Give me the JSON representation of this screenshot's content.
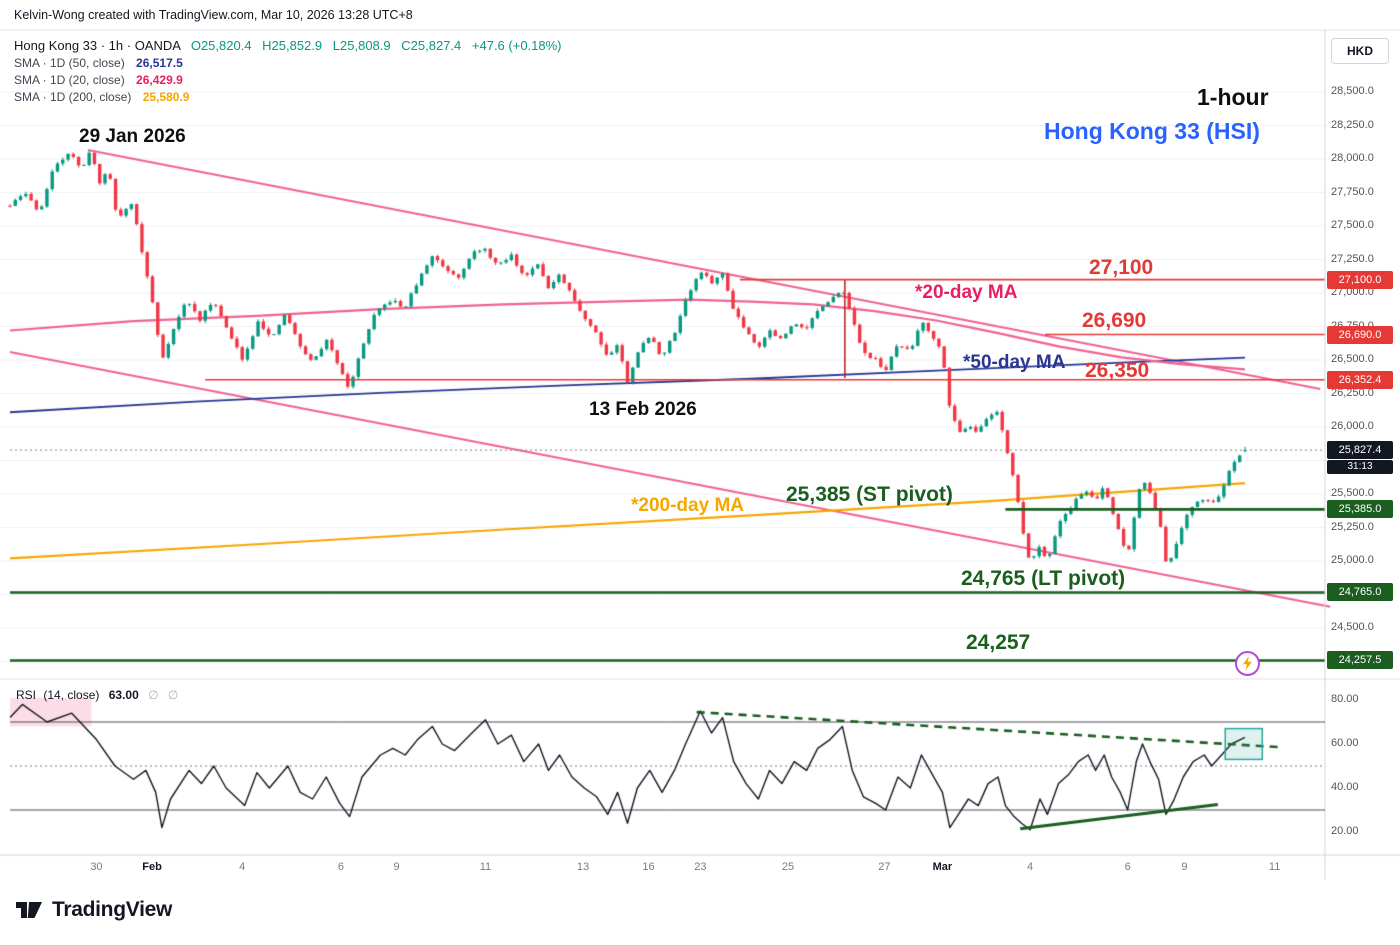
{
  "header": {
    "credit": "Kelvin-Wong created with TradingView.com, Mar 10, 2026 13:28 UTC+8"
  },
  "currency_button": "HKD",
  "legend": {
    "symbol": "Hong Kong 33 · 1h · OANDA",
    "o": "O25,820.4",
    "h": "H25,852.9",
    "l": "L25,808.9",
    "c": "C25,827.4",
    "change": "+47.6 (+0.18%)",
    "sma": [
      {
        "label": "SMA · 1D (50, close)",
        "value": "26,517.5",
        "color": "#283593"
      },
      {
        "label": "SMA · 1D (20, close)",
        "value": "26,429.9",
        "color": "#e91e63"
      },
      {
        "label": "SMA · 1D (200, close)",
        "value": "25,580.9",
        "color": "#f7a600"
      }
    ]
  },
  "annotations": {
    "date_jan": "29 Jan 2026",
    "date_feb": "13 Feb 2026",
    "timeframe": "1-hour",
    "symbol": "Hong Kong 33 (HSI)",
    "r1": "27,100",
    "ma20": "*20-day MA",
    "r2": "26,690",
    "ma50": "*50-day MA",
    "r3": "26,350",
    "ma200": "*200-day MA",
    "st_pivot": "25,385 (ST pivot)",
    "lt_pivot": "24,765 (LT pivot)",
    "s3": "24,257"
  },
  "rsi_legend": {
    "name": "RSI",
    "params": "(14, close)",
    "value": "63.00",
    "empty1": "∅",
    "empty2": "∅"
  },
  "logo": {
    "text": "TradingView"
  },
  "price_axis": {
    "labels": [
      {
        "text": "28,500.0",
        "price": 28500
      },
      {
        "text": "28,250.0",
        "price": 28250
      },
      {
        "text": "28,000.0",
        "price": 28000
      },
      {
        "text": "27,750.0",
        "price": 27750
      },
      {
        "text": "27,500.0",
        "price": 27500
      },
      {
        "text": "27,250.0",
        "price": 27250
      },
      {
        "text": "27,000.0",
        "price": 27000
      },
      {
        "text": "26,750.0",
        "price": 26750
      },
      {
        "text": "26,500.0",
        "price": 26500
      },
      {
        "text": "26,250.0",
        "price": 26250
      },
      {
        "text": "26,000.0",
        "price": 26000
      },
      {
        "text": "25,500.0",
        "price": 25500
      },
      {
        "text": "25,250.0",
        "price": 25250
      },
      {
        "text": "25,000.0",
        "price": 25000
      },
      {
        "text": "24,500.0",
        "price": 24500
      }
    ],
    "badges": [
      {
        "text": "27,100.0",
        "price": 27100,
        "bg": "#e53935"
      },
      {
        "text": "26,690.0",
        "price": 26690,
        "bg": "#e53935"
      },
      {
        "text": "26,352.4",
        "price": 26352.4,
        "bg": "#e53935"
      },
      {
        "text": "25,827.4",
        "price": 25827.4,
        "bg": "#131722",
        "sub": "31:13"
      },
      {
        "text": "25,385.0",
        "price": 25385,
        "bg": "#1b5e20"
      },
      {
        "text": "24,765.0",
        "price": 24765,
        "bg": "#1b5e20"
      },
      {
        "text": "24,257.5",
        "price": 24257.5,
        "bg": "#1b5e20"
      }
    ]
  },
  "rsi_axis": {
    "labels": [
      {
        "text": "80.00",
        "v": 80
      },
      {
        "text": "60.00",
        "v": 60
      },
      {
        "text": "40.00",
        "v": 40
      },
      {
        "text": "20.00",
        "v": 20
      }
    ]
  },
  "time_axis": {
    "ticks": [
      {
        "label": "30",
        "t": 0.07,
        "major": false
      },
      {
        "label": "Feb",
        "t": 0.115,
        "major": true
      },
      {
        "label": "4",
        "t": 0.188,
        "major": false
      },
      {
        "label": "6",
        "t": 0.268,
        "major": false
      },
      {
        "label": "9",
        "t": 0.313,
        "major": false
      },
      {
        "label": "11",
        "t": 0.385,
        "major": false
      },
      {
        "label": "13",
        "t": 0.464,
        "major": false
      },
      {
        "label": "16",
        "t": 0.517,
        "major": false
      },
      {
        "label": "23",
        "t": 0.559,
        "major": false
      },
      {
        "label": "25",
        "t": 0.63,
        "major": false
      },
      {
        "label": "27",
        "t": 0.708,
        "major": false
      },
      {
        "label": "Mar",
        "t": 0.755,
        "major": true
      },
      {
        "label": "4",
        "t": 0.826,
        "major": false
      },
      {
        "label": "6",
        "t": 0.905,
        "major": false
      },
      {
        "label": "9",
        "t": 0.951,
        "major": false
      },
      {
        "label": "11",
        "t": 1.024,
        "major": false
      }
    ]
  },
  "chart_data": {
    "type": "candlestick",
    "symbol": "Hong Kong 33 (HSI)",
    "exchange": "OANDA",
    "interval": "1h",
    "title": "Hong Kong 33 (HSI) 1-hour with 20/50/200-day SMAs and RSI(14)",
    "y_axis_range": [
      24150,
      28650
    ],
    "ohlc_last": {
      "open": 25820.4,
      "high": 25852.9,
      "low": 25808.9,
      "close": 25827.4,
      "change": 47.6,
      "change_pct": 0.18
    },
    "last_price": 25827.4,
    "sma_last": {
      "sma50": 26517.5,
      "sma20": 26429.9,
      "sma200": 25580.9
    },
    "close_path": [
      [
        0,
        27650
      ],
      [
        0.012,
        27750
      ],
      [
        0.024,
        27600
      ],
      [
        0.036,
        27950
      ],
      [
        0.049,
        28060
      ],
      [
        0.058,
        27900
      ],
      [
        0.065,
        28080
      ],
      [
        0.073,
        27800
      ],
      [
        0.079,
        27950
      ],
      [
        0.087,
        27550
      ],
      [
        0.099,
        27680
      ],
      [
        0.107,
        27300
      ],
      [
        0.115,
        26950
      ],
      [
        0.123,
        26500
      ],
      [
        0.131,
        26700
      ],
      [
        0.143,
        26950
      ],
      [
        0.154,
        26800
      ],
      [
        0.165,
        26950
      ],
      [
        0.177,
        26700
      ],
      [
        0.189,
        26500
      ],
      [
        0.201,
        26800
      ],
      [
        0.212,
        26650
      ],
      [
        0.223,
        26850
      ],
      [
        0.235,
        26600
      ],
      [
        0.245,
        26480
      ],
      [
        0.256,
        26650
      ],
      [
        0.267,
        26450
      ],
      [
        0.275,
        26280
      ],
      [
        0.285,
        26600
      ],
      [
        0.296,
        26850
      ],
      [
        0.309,
        26950
      ],
      [
        0.319,
        26880
      ],
      [
        0.33,
        27080
      ],
      [
        0.342,
        27280
      ],
      [
        0.353,
        27180
      ],
      [
        0.363,
        27120
      ],
      [
        0.374,
        27300
      ],
      [
        0.385,
        27320
      ],
      [
        0.395,
        27200
      ],
      [
        0.406,
        27280
      ],
      [
        0.416,
        27120
      ],
      [
        0.428,
        27230
      ],
      [
        0.436,
        27030
      ],
      [
        0.445,
        27130
      ],
      [
        0.455,
        26980
      ],
      [
        0.465,
        26820
      ],
      [
        0.475,
        26700
      ],
      [
        0.484,
        26520
      ],
      [
        0.492,
        26620
      ],
      [
        0.5,
        26330
      ],
      [
        0.508,
        26560
      ],
      [
        0.518,
        26680
      ],
      [
        0.528,
        26520
      ],
      [
        0.538,
        26700
      ],
      [
        0.547,
        26950
      ],
      [
        0.559,
        27160
      ],
      [
        0.568,
        27080
      ],
      [
        0.577,
        27140
      ],
      [
        0.586,
        26880
      ],
      [
        0.596,
        26720
      ],
      [
        0.606,
        26600
      ],
      [
        0.615,
        26720
      ],
      [
        0.625,
        26650
      ],
      [
        0.635,
        26780
      ],
      [
        0.645,
        26740
      ],
      [
        0.654,
        26870
      ],
      [
        0.664,
        26930
      ],
      [
        0.674,
        27050
      ],
      [
        0.682,
        26800
      ],
      [
        0.691,
        26560
      ],
      [
        0.701,
        26500
      ],
      [
        0.709,
        26420
      ],
      [
        0.719,
        26620
      ],
      [
        0.729,
        26560
      ],
      [
        0.738,
        26800
      ],
      [
        0.747,
        26680
      ],
      [
        0.755,
        26550
      ],
      [
        0.761,
        26150
      ],
      [
        0.768,
        25950
      ],
      [
        0.776,
        26020
      ],
      [
        0.784,
        25960
      ],
      [
        0.792,
        26080
      ],
      [
        0.8,
        26120
      ],
      [
        0.806,
        25880
      ],
      [
        0.813,
        25600
      ],
      [
        0.819,
        25280
      ],
      [
        0.826,
        24980
      ],
      [
        0.834,
        25120
      ],
      [
        0.84,
        25000
      ],
      [
        0.849,
        25280
      ],
      [
        0.857,
        25380
      ],
      [
        0.865,
        25480
      ],
      [
        0.873,
        25530
      ],
      [
        0.879,
        25440
      ],
      [
        0.886,
        25560
      ],
      [
        0.892,
        25380
      ],
      [
        0.899,
        25200
      ],
      [
        0.905,
        25020
      ],
      [
        0.912,
        25440
      ],
      [
        0.917,
        25620
      ],
      [
        0.923,
        25500
      ],
      [
        0.93,
        25340
      ],
      [
        0.936,
        24980
      ],
      [
        0.942,
        25050
      ],
      [
        0.95,
        25280
      ],
      [
        0.958,
        25420
      ],
      [
        0.967,
        25470
      ],
      [
        0.973,
        25420
      ],
      [
        0.981,
        25520
      ],
      [
        0.989,
        25700
      ],
      [
        1,
        25827.4
      ]
    ],
    "sma20": [
      [
        0,
        26720
      ],
      [
        0.1,
        26790
      ],
      [
        0.2,
        26830
      ],
      [
        0.3,
        26880
      ],
      [
        0.4,
        26915
      ],
      [
        0.5,
        26940
      ],
      [
        0.55,
        26950
      ],
      [
        0.6,
        26935
      ],
      [
        0.65,
        26915
      ],
      [
        0.7,
        26865
      ],
      [
        0.75,
        26795
      ],
      [
        0.8,
        26700
      ],
      [
        0.85,
        26600
      ],
      [
        0.9,
        26520
      ],
      [
        0.95,
        26468
      ],
      [
        1,
        26429.9
      ]
    ],
    "sma50": [
      [
        0,
        26110
      ],
      [
        0.15,
        26190
      ],
      [
        0.3,
        26255
      ],
      [
        0.45,
        26310
      ],
      [
        0.6,
        26360
      ],
      [
        0.75,
        26420
      ],
      [
        0.9,
        26480
      ],
      [
        1,
        26517.5
      ]
    ],
    "sma200": [
      [
        0,
        25020
      ],
      [
        0.2,
        25125
      ],
      [
        0.4,
        25235
      ],
      [
        0.6,
        25340
      ],
      [
        0.8,
        25450
      ],
      [
        1,
        25580.9
      ]
    ],
    "levels": [
      {
        "price": 27100,
        "t_start": 0.591,
        "color": "#e53935",
        "width": 1.6
      },
      {
        "price": 26690,
        "t_start": 0.838,
        "color": "#e53935",
        "width": 1.6
      },
      {
        "price": 26352.4,
        "t_start": 0.158,
        "color": "#e53935",
        "width": 1.6
      },
      {
        "price": 25385,
        "t_start": 0.806,
        "color": "#1b5e20",
        "width": 2.6
      },
      {
        "price": 24765,
        "t_start": 0,
        "color": "#1b5e20",
        "width": 2.6
      },
      {
        "price": 24257.5,
        "t_start": 0,
        "color": "#1b5e20",
        "width": 2.6
      }
    ],
    "trendlines": [
      {
        "x1t": 0.063,
        "p1": 28067,
        "x2t": 1.061,
        "p2": 26284,
        "color": "#f06292",
        "width": 2
      },
      {
        "x1t": 0,
        "p1": 26560,
        "x2t": 1.069,
        "p2": 24658,
        "color": "#f06292",
        "width": 2
      }
    ],
    "vline": {
      "t": 0.676,
      "p1": 27100,
      "p2": 26366,
      "color": "#b91c1c",
      "width": 1.5
    },
    "rsi": {
      "period": 14,
      "source": "close",
      "last": 63.0,
      "bands": [
        {
          "v": 70,
          "style": "solid"
        },
        {
          "v": 30,
          "style": "solid"
        },
        {
          "v": 50,
          "style": "dashed"
        }
      ],
      "dashed_trend": {
        "x1t": 0.556,
        "v1": 74.5,
        "x2t": 1.03,
        "v2": 58.5
      },
      "solid_trend": {
        "x1t": 0.818,
        "v1": 21.5,
        "x2t": 0.978,
        "v2": 32.5
      },
      "highlight_box": {
        "x1t": 0.984,
        "v1": 53,
        "x2t": 1.014,
        "v2": 67
      },
      "shade": {
        "x1t": 0,
        "x2t": 0.066,
        "v1": 68,
        "v2": 81
      },
      "values": [
        [
          0,
          72
        ],
        [
          0.01,
          78
        ],
        [
          0.03,
          70
        ],
        [
          0.05,
          74
        ],
        [
          0.07,
          62
        ],
        [
          0.085,
          50
        ],
        [
          0.1,
          44
        ],
        [
          0.11,
          48
        ],
        [
          0.118,
          38
        ],
        [
          0.123,
          22
        ],
        [
          0.13,
          35
        ],
        [
          0.145,
          48
        ],
        [
          0.155,
          42
        ],
        [
          0.165,
          50
        ],
        [
          0.175,
          40
        ],
        [
          0.19,
          32
        ],
        [
          0.2,
          47
        ],
        [
          0.21,
          40
        ],
        [
          0.225,
          50
        ],
        [
          0.235,
          38
        ],
        [
          0.245,
          35
        ],
        [
          0.256,
          45
        ],
        [
          0.267,
          33
        ],
        [
          0.275,
          27
        ],
        [
          0.285,
          45
        ],
        [
          0.3,
          55
        ],
        [
          0.31,
          58
        ],
        [
          0.32,
          55
        ],
        [
          0.33,
          62
        ],
        [
          0.342,
          68
        ],
        [
          0.35,
          60
        ],
        [
          0.36,
          57
        ],
        [
          0.374,
          65
        ],
        [
          0.385,
          71
        ],
        [
          0.395,
          60
        ],
        [
          0.406,
          64
        ],
        [
          0.416,
          52
        ],
        [
          0.428,
          60
        ],
        [
          0.436,
          48
        ],
        [
          0.445,
          55
        ],
        [
          0.455,
          45
        ],
        [
          0.465,
          40
        ],
        [
          0.475,
          36
        ],
        [
          0.484,
          28
        ],
        [
          0.492,
          38
        ],
        [
          0.5,
          24
        ],
        [
          0.508,
          40
        ],
        [
          0.518,
          48
        ],
        [
          0.528,
          38
        ],
        [
          0.538,
          48
        ],
        [
          0.547,
          60
        ],
        [
          0.559,
          75
        ],
        [
          0.568,
          65
        ],
        [
          0.577,
          72
        ],
        [
          0.586,
          52
        ],
        [
          0.596,
          42
        ],
        [
          0.606,
          35
        ],
        [
          0.615,
          48
        ],
        [
          0.625,
          42
        ],
        [
          0.635,
          52
        ],
        [
          0.645,
          48
        ],
        [
          0.654,
          58
        ],
        [
          0.664,
          62
        ],
        [
          0.674,
          68
        ],
        [
          0.682,
          48
        ],
        [
          0.691,
          36
        ],
        [
          0.701,
          33
        ],
        [
          0.709,
          30
        ],
        [
          0.719,
          45
        ],
        [
          0.729,
          40
        ],
        [
          0.738,
          55
        ],
        [
          0.747,
          46
        ],
        [
          0.755,
          38
        ],
        [
          0.761,
          22
        ],
        [
          0.768,
          28
        ],
        [
          0.776,
          35
        ],
        [
          0.784,
          32
        ],
        [
          0.792,
          42
        ],
        [
          0.8,
          45
        ],
        [
          0.806,
          32
        ],
        [
          0.813,
          27
        ],
        [
          0.819,
          24
        ],
        [
          0.826,
          21
        ],
        [
          0.834,
          35
        ],
        [
          0.84,
          28
        ],
        [
          0.849,
          42
        ],
        [
          0.857,
          46
        ],
        [
          0.865,
          52
        ],
        [
          0.873,
          55
        ],
        [
          0.879,
          48
        ],
        [
          0.886,
          55
        ],
        [
          0.892,
          45
        ],
        [
          0.899,
          38
        ],
        [
          0.905,
          30
        ],
        [
          0.912,
          52
        ],
        [
          0.917,
          60
        ],
        [
          0.923,
          52
        ],
        [
          0.93,
          44
        ],
        [
          0.936,
          28
        ],
        [
          0.942,
          34
        ],
        [
          0.95,
          45
        ],
        [
          0.958,
          52
        ],
        [
          0.967,
          55
        ],
        [
          0.973,
          50
        ],
        [
          0.981,
          55
        ],
        [
          0.989,
          60
        ],
        [
          1,
          63
        ]
      ]
    },
    "colors": {
      "up": "#089981",
      "down": "#f23645",
      "grid": "#eef0f5",
      "separator": "#e0e3eb",
      "axis_border": "#d1d4dc",
      "rsi_line": "#131722",
      "band": "#4a4d57",
      "dotted_last": "#787b86",
      "sma20": "#f06292",
      "sma50": "#283593",
      "sma200": "#f7a600",
      "trendline": "#f06292",
      "red_level": "#e53935",
      "green_level": "#1b5e20",
      "title_blue": "#2962ff",
      "rsi_box": "#26a69a",
      "rsi_shade": "rgba(236,64,122,0.18)"
    }
  }
}
